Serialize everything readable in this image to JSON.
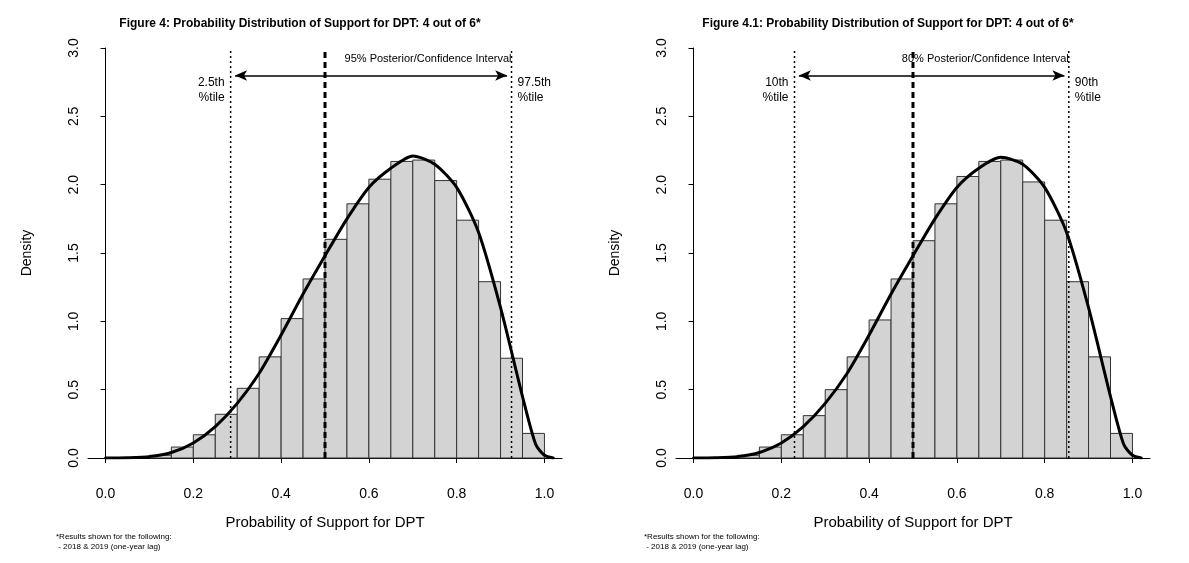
{
  "chart_data": [
    {
      "type": "histogram",
      "title": "Figure 4: Probability Distribution of Support for DPT: 4 out of 6*",
      "xlabel": "Probability of Support for DPT",
      "ylabel": "Density",
      "xlim": [
        -0.04,
        1.04
      ],
      "ylim": [
        0,
        3
      ],
      "xticks": [
        {
          "value": 0,
          "label": "0.0"
        },
        {
          "value": 0.2,
          "label": "0.2"
        },
        {
          "value": 0.4,
          "label": "0.4"
        },
        {
          "value": 0.6,
          "label": "0.6"
        },
        {
          "value": 0.8,
          "label": "0.8"
        },
        {
          "value": 1,
          "label": "1.0"
        }
      ],
      "yticks": [
        {
          "value": 0,
          "label": "0.0"
        },
        {
          "value": 0.5,
          "label": "0.5"
        },
        {
          "value": 1,
          "label": "1.0"
        },
        {
          "value": 1.5,
          "label": "1.5"
        },
        {
          "value": 2,
          "label": "2.0"
        },
        {
          "value": 2.5,
          "label": "2.5"
        },
        {
          "value": 3,
          "label": "3.0"
        }
      ],
      "series": [
        {
          "type": "histogram",
          "color": "#d3d3d3",
          "bins": [
            0.1,
            0.15,
            0.2,
            0.25,
            0.3,
            0.35,
            0.4,
            0.45,
            0.5,
            0.55,
            0.6,
            0.65,
            0.7,
            0.75,
            0.8,
            0.85,
            0.9,
            0.95,
            1.0
          ],
          "values": [
            0.02,
            0.08,
            0.17,
            0.32,
            0.51,
            0.74,
            1.02,
            1.31,
            1.6,
            1.86,
            2.04,
            2.17,
            2.18,
            2.03,
            1.74,
            1.29,
            0.73,
            0.18
          ]
        },
        {
          "type": "line",
          "color": "#000000",
          "line_style": "solid",
          "x": [
            0,
            0.05,
            0.1,
            0.15,
            0.2,
            0.25,
            0.3,
            0.35,
            0.4,
            0.45,
            0.5,
            0.55,
            0.6,
            0.65,
            0.7,
            0.75,
            0.8,
            0.85,
            0.9,
            0.95,
            0.98,
            1.0,
            1.02
          ],
          "values": [
            0,
            0.002,
            0.01,
            0.04,
            0.11,
            0.23,
            0.4,
            0.62,
            0.9,
            1.2,
            1.48,
            1.75,
            1.98,
            2.12,
            2.21,
            2.15,
            1.98,
            1.65,
            1.1,
            0.45,
            0.1,
            0.02,
            0
          ]
        }
      ],
      "marker": "none",
      "ref_lines": [
        {
          "axis": "x",
          "value": 0.285,
          "label": "2.5th\n%tile",
          "line_style": "dotted"
        },
        {
          "axis": "x",
          "value": 0.5,
          "line_style": "dashed"
        },
        {
          "axis": "x",
          "value": 0.925,
          "label": "97.5th\n%tile",
          "line_style": "dotted"
        }
      ],
      "annotations": [
        "95% Posterior/Confidence Interval",
        "*Results shown for the following:\n - 2018 & 2019 (one-year lag)"
      ]
    },
    {
      "type": "histogram",
      "title": "Figure 4.1: Probability Distribution of Support for DPT: 4 out of 6*",
      "xlabel": "Probability of Support for DPT",
      "ylabel": "Density",
      "xlim": [
        -0.04,
        1.04
      ],
      "ylim": [
        0,
        3
      ],
      "xticks": [
        {
          "value": 0,
          "label": "0.0"
        },
        {
          "value": 0.2,
          "label": "0.2"
        },
        {
          "value": 0.4,
          "label": "0.4"
        },
        {
          "value": 0.6,
          "label": "0.6"
        },
        {
          "value": 0.8,
          "label": "0.8"
        },
        {
          "value": 1,
          "label": "1.0"
        }
      ],
      "yticks": [
        {
          "value": 0,
          "label": "0.0"
        },
        {
          "value": 0.5,
          "label": "0.5"
        },
        {
          "value": 1,
          "label": "1.0"
        },
        {
          "value": 1.5,
          "label": "1.5"
        },
        {
          "value": 2,
          "label": "2.0"
        },
        {
          "value": 2.5,
          "label": "2.5"
        },
        {
          "value": 3,
          "label": "3.0"
        }
      ],
      "series": [
        {
          "type": "histogram",
          "color": "#d3d3d3",
          "bins": [
            0.1,
            0.15,
            0.2,
            0.25,
            0.3,
            0.35,
            0.4,
            0.45,
            0.5,
            0.55,
            0.6,
            0.65,
            0.7,
            0.75,
            0.8,
            0.85,
            0.9,
            0.95,
            1.0
          ],
          "values": [
            0.02,
            0.08,
            0.17,
            0.31,
            0.5,
            0.74,
            1.01,
            1.31,
            1.59,
            1.86,
            2.06,
            2.17,
            2.18,
            2.02,
            1.74,
            1.29,
            0.74,
            0.18
          ]
        },
        {
          "type": "line",
          "color": "#000000",
          "line_style": "solid",
          "x": [
            0,
            0.05,
            0.1,
            0.15,
            0.2,
            0.25,
            0.3,
            0.35,
            0.4,
            0.45,
            0.5,
            0.55,
            0.6,
            0.65,
            0.7,
            0.75,
            0.8,
            0.85,
            0.9,
            0.95,
            0.98,
            1.0,
            1.02
          ],
          "values": [
            0,
            0.002,
            0.01,
            0.04,
            0.11,
            0.23,
            0.4,
            0.62,
            0.9,
            1.2,
            1.48,
            1.75,
            1.98,
            2.12,
            2.2,
            2.15,
            1.98,
            1.65,
            1.1,
            0.45,
            0.1,
            0.02,
            0
          ]
        }
      ],
      "marker": "none",
      "ref_lines": [
        {
          "axis": "x",
          "value": 0.23,
          "label": "10th\n%tile",
          "line_style": "dotted"
        },
        {
          "axis": "x",
          "value": 0.5,
          "line_style": "dashed"
        },
        {
          "axis": "x",
          "value": 0.855,
          "label": "90th\n%tile",
          "line_style": "dotted"
        }
      ],
      "annotations": [
        "80% Posterior/Confidence Interval",
        "*Results shown for the following:\n - 2018 & 2019 (one-year lag)"
      ]
    }
  ]
}
